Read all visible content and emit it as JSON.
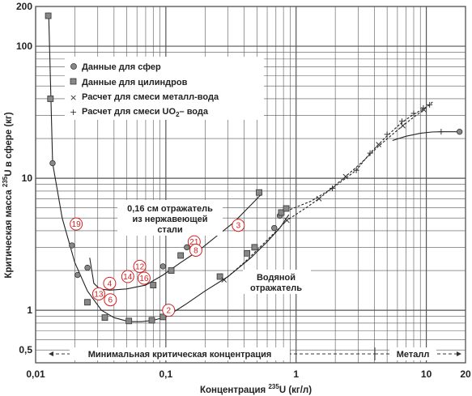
{
  "chart_data": {
    "type": "scatter",
    "x_scale": "log",
    "y_scale": "log",
    "xlim": [
      0.01,
      20
    ],
    "ylim": [
      0.4,
      200
    ],
    "grid": true,
    "xlabel": {
      "pre": "Концентрация ",
      "sup": "235",
      "post": "U (кг/л)"
    },
    "ylabel": {
      "pre": "Критическая масса ",
      "sup": "235",
      "post": "U в сфере (кг)"
    },
    "x_ticks": [
      {
        "value": 0.01,
        "label": "0,01"
      },
      {
        "value": 0.1,
        "label": "0,1"
      },
      {
        "value": 1,
        "label": "1"
      },
      {
        "value": 10,
        "label": "10"
      },
      {
        "value": 20,
        "label": "20"
      }
    ],
    "y_ticks": [
      {
        "value": 0.5,
        "label": "0,5"
      },
      {
        "value": 1,
        "label": "1"
      },
      {
        "value": 10,
        "label": "10"
      },
      {
        "value": 100,
        "label": "100"
      },
      {
        "value": 200,
        "label": "200"
      }
    ],
    "legend": {
      "placement": "top-left",
      "entries": [
        {
          "marker": "circle",
          "label": "Данные для сфер"
        },
        {
          "marker": "square",
          "label": "Данные для цилиндров"
        },
        {
          "marker": "x",
          "label": "Расчет для смеси металл-вода"
        },
        {
          "marker": "plus",
          "label_pre": "Расчет для смеси UO",
          "label_sub": "2",
          "label_post": "– вода"
        }
      ]
    },
    "series": [
      {
        "name": "Данные для сфер",
        "marker": "circle",
        "color": "#888888",
        "points": [
          [
            0.0135,
            13
          ],
          [
            0.019,
            3.1
          ],
          [
            0.021,
            1.85
          ],
          [
            0.025,
            2.1
          ],
          [
            0.07,
            1.65
          ],
          [
            0.095,
            2.15
          ],
          [
            0.145,
            3.0
          ],
          [
            0.68,
            4.2
          ],
          [
            0.75,
            5.2
          ],
          [
            18,
            22.5
          ]
        ]
      },
      {
        "name": "Данные для цилиндров",
        "marker": "square",
        "color": "#888888",
        "points": [
          [
            0.0125,
            170
          ],
          [
            0.013,
            40
          ],
          [
            0.025,
            1.15
          ],
          [
            0.034,
            0.88
          ],
          [
            0.052,
            0.83
          ],
          [
            0.078,
            0.84
          ],
          [
            0.095,
            0.89
          ],
          [
            0.11,
            2.0
          ],
          [
            0.26,
            1.8
          ],
          [
            0.42,
            2.7
          ],
          [
            0.48,
            3.0
          ],
          [
            0.77,
            5.5
          ],
          [
            0.84,
            5.9
          ],
          [
            0.52,
            7.8
          ],
          [
            0.08,
            1.55
          ],
          [
            0.13,
            2.6
          ]
        ]
      },
      {
        "name": "Расчет для смеси металл-вода",
        "marker": "x",
        "color": "#333333",
        "points": [
          [
            0.28,
            1.7
          ],
          [
            0.85,
            4.8
          ],
          [
            1.5,
            7.0
          ],
          [
            2.4,
            10.3
          ],
          [
            4.3,
            18
          ],
          [
            6.6,
            25
          ],
          [
            9.6,
            33
          ]
        ]
      },
      {
        "name": "Расчет для смеси UO₂– вода",
        "marker": "plus",
        "color": "#333333",
        "points": [
          [
            1.9,
            8.4
          ],
          [
            2.9,
            11.5
          ],
          [
            3.7,
            15.5
          ],
          [
            5.0,
            21.5
          ],
          [
            6.5,
            27
          ],
          [
            8.0,
            31
          ],
          [
            9.5,
            34
          ],
          [
            10.6,
            36
          ],
          [
            13.0,
            22.5
          ]
        ]
      }
    ],
    "curves": [
      {
        "name": "водяной отражатель",
        "style": "solid",
        "points": [
          [
            0.0126,
            180
          ],
          [
            0.0135,
            13
          ],
          [
            0.016,
            5
          ],
          [
            0.02,
            2.3
          ],
          [
            0.025,
            1.4
          ],
          [
            0.032,
            1.0
          ],
          [
            0.04,
            0.88
          ],
          [
            0.052,
            0.82
          ],
          [
            0.065,
            0.82
          ],
          [
            0.08,
            0.84
          ],
          [
            0.1,
            0.89
          ],
          [
            0.14,
            1.1
          ],
          [
            0.2,
            1.4
          ],
          [
            0.3,
            1.8
          ],
          [
            0.45,
            2.5
          ],
          [
            0.6,
            3.3
          ],
          [
            0.75,
            4.2
          ],
          [
            0.88,
            5.3
          ]
        ]
      },
      {
        "name": "металл-вода",
        "style": "dashed",
        "points": [
          [
            0.28,
            1.7
          ],
          [
            0.4,
            2.3
          ],
          [
            0.6,
            3.4
          ],
          [
            0.85,
            4.8
          ],
          [
            1.2,
            6.0
          ],
          [
            1.5,
            7.0
          ],
          [
            2.4,
            10.3
          ],
          [
            3.2,
            13.2
          ],
          [
            4.3,
            17.5
          ],
          [
            5.5,
            21.5
          ],
          [
            6.6,
            25
          ],
          [
            8,
            29
          ],
          [
            9.6,
            33
          ]
        ]
      },
      {
        "name": "UO₂– вода",
        "style": "dashed",
        "points": [
          [
            0.9,
            5.8
          ],
          [
            1.3,
            6.7
          ],
          [
            1.9,
            8.4
          ],
          [
            2.9,
            11.5
          ],
          [
            3.7,
            15.5
          ],
          [
            5.0,
            21
          ],
          [
            6.5,
            26.5
          ],
          [
            8.0,
            30.5
          ],
          [
            9.5,
            33.5
          ],
          [
            10.6,
            36
          ],
          [
            11.2,
            38
          ]
        ]
      },
      {
        "name": "металл",
        "style": "solid",
        "points": [
          [
            5.5,
            19.3
          ],
          [
            7,
            20.8
          ],
          [
            9,
            21.9
          ],
          [
            11,
            22.4
          ],
          [
            13,
            22.5
          ],
          [
            18,
            22.5
          ]
        ]
      },
      {
        "name": "0,16 см отражатель",
        "style": "solid",
        "points": [
          [
            0.026,
            2.5
          ],
          [
            0.028,
            1.6
          ],
          [
            0.031,
            1.45
          ],
          [
            0.037,
            1.42
          ],
          [
            0.05,
            1.45
          ],
          [
            0.07,
            1.55
          ],
          [
            0.095,
            1.85
          ],
          [
            0.13,
            2.3
          ],
          [
            0.18,
            2.85
          ],
          [
            0.25,
            3.7
          ],
          [
            0.33,
            4.6
          ],
          [
            0.43,
            6.0
          ],
          [
            0.55,
            7.7
          ]
        ]
      }
    ],
    "annotations": {
      "reflector": [
        "0,16 см отражатель",
        "из нержавеющей",
        "стали"
      ],
      "water_reflector": [
        "Водяной",
        "отражатель"
      ],
      "min_conc": "Минимальная критическая концентрация",
      "metal": "Металл"
    },
    "circled_labels": [
      {
        "text": "19",
        "x": 0.0205,
        "y": 4.5
      },
      {
        "text": "3",
        "x": 0.36,
        "y": 4.4
      },
      {
        "text": "21",
        "x": 0.165,
        "y": 3.3
      },
      {
        "text": "8",
        "x": 0.17,
        "y": 2.85
      },
      {
        "text": "12",
        "x": 0.063,
        "y": 2.15
      },
      {
        "text": "14",
        "x": 0.051,
        "y": 1.8
      },
      {
        "text": "16",
        "x": 0.068,
        "y": 1.75
      },
      {
        "text": "4",
        "x": 0.037,
        "y": 1.6
      },
      {
        "text": "13",
        "x": 0.0305,
        "y": 1.33
      },
      {
        "text": "6",
        "x": 0.0375,
        "y": 1.2
      },
      {
        "text": "2",
        "x": 0.105,
        "y": 1.0
      }
    ],
    "colors": {
      "grid": "#555555",
      "circled": "#d42020",
      "marker_fill": "#888888"
    }
  }
}
